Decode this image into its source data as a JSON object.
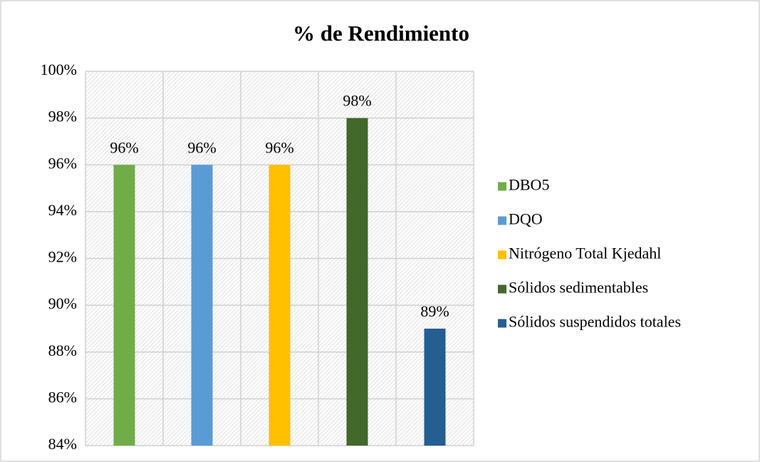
{
  "chart_data": {
    "type": "bar",
    "title": "% de Rendimiento",
    "categories": [
      null
    ],
    "series": [
      {
        "name": "DBO5",
        "color": "#70ad47",
        "values": [
          96
        ],
        "value_labels": [
          "96%"
        ]
      },
      {
        "name": "DQO",
        "color": "#5b9bd5",
        "values": [
          96
        ],
        "value_labels": [
          "96%"
        ]
      },
      {
        "name": "Nitrógeno Total Kjedahl",
        "color": "#ffc000",
        "values": [
          96
        ],
        "value_labels": [
          "96%"
        ]
      },
      {
        "name": "Sólidos sedimentables",
        "color": "#43682b",
        "values": [
          98
        ],
        "value_labels": [
          "98%"
        ]
      },
      {
        "name": "Sólidos suspendidos totales",
        "color": "#255e91",
        "values": [
          89
        ],
        "value_labels": [
          "89%"
        ]
      }
    ],
    "ylim": [
      84,
      100
    ],
    "yticks": [
      {
        "value": 84,
        "label": "84%"
      },
      {
        "value": 86,
        "label": "86%"
      },
      {
        "value": 88,
        "label": "88%"
      },
      {
        "value": 90,
        "label": "90%"
      },
      {
        "value": 92,
        "label": "92%"
      },
      {
        "value": 94,
        "label": "94%"
      },
      {
        "value": 96,
        "label": "96%"
      },
      {
        "value": 98,
        "label": "98%"
      },
      {
        "value": 100,
        "label": "100%"
      }
    ],
    "grid": true,
    "legend": "right"
  }
}
